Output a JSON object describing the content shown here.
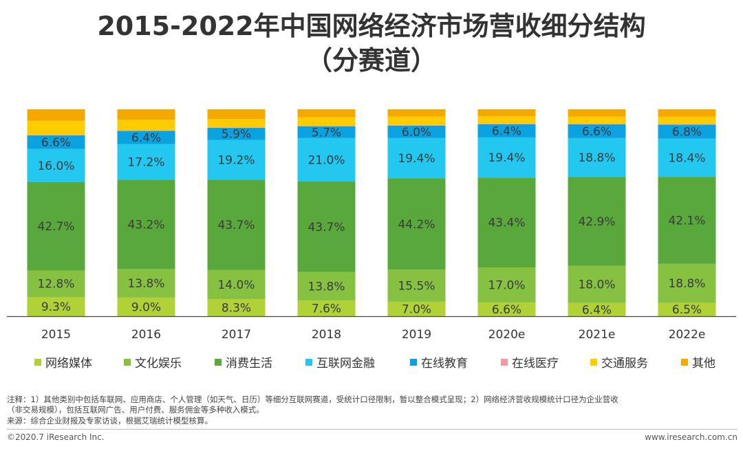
{
  "page": {
    "title_line1": "2015-2022年中国网络经济市场营收细分结构",
    "title_line2": "（分赛道）",
    "note_line1": "注释：1）其他类别中包括车联网、应用商店、个人管理（如天气、日历）等细分互联网赛道，受统计口径限制，暂以整合模式呈现；2）网络经济营收规模统计口径为企业营收",
    "note_line2": "（非交易规模），包括互联网广告、用户付费、服务佣金等多种收入模式。",
    "source": "来源：综合企业财报及专家访谈，根据艾瑞统计模型核算。",
    "copyright": "©2020.7 iResearch Inc.",
    "website": "www.iresearch.com.cn"
  },
  "chart_data": {
    "type": "bar",
    "stacked": true,
    "normalized": true,
    "categories": [
      "2015",
      "2016",
      "2017",
      "2018",
      "2019",
      "2020e",
      "2021e",
      "2022e"
    ],
    "series": [
      {
        "name": "网络媒体",
        "color": "#b0d236",
        "values": [
          9.3,
          9.0,
          8.3,
          7.6,
          7.0,
          6.6,
          6.4,
          6.5
        ],
        "labels": [
          "9.3%",
          "9.0%",
          "8.3%",
          "7.6%",
          "7.0%",
          "6.6%",
          "6.4%",
          "6.5%"
        ]
      },
      {
        "name": "文化娱乐",
        "color": "#86c142",
        "values": [
          12.8,
          13.8,
          14.0,
          13.8,
          15.5,
          17.0,
          18.0,
          18.8
        ],
        "labels": [
          "12.8%",
          "13.8%",
          "14.0%",
          "13.8%",
          "15.5%",
          "17.0%",
          "18.0%",
          "18.8%"
        ]
      },
      {
        "name": "消费生活",
        "color": "#59a83c",
        "values": [
          42.7,
          43.2,
          43.7,
          43.7,
          44.2,
          43.4,
          42.9,
          42.1
        ],
        "labels": [
          "42.7%",
          "43.2%",
          "43.7%",
          "43.7%",
          "44.2%",
          "43.4%",
          "42.9%",
          "42.1%"
        ]
      },
      {
        "name": "互联网金融",
        "color": "#22c8f0",
        "values": [
          16.0,
          17.2,
          19.2,
          21.0,
          19.4,
          19.4,
          18.8,
          18.4
        ],
        "labels": [
          "16.0%",
          "17.2%",
          "19.2%",
          "21.0%",
          "19.4%",
          "19.4%",
          "18.8%",
          "18.4%"
        ]
      },
      {
        "name": "在线教育",
        "color": "#0aa2e0",
        "values": [
          6.6,
          6.4,
          5.9,
          5.7,
          6.0,
          6.4,
          6.6,
          6.8
        ],
        "labels": [
          "6.6%",
          "6.4%",
          "5.9%",
          "5.7%",
          "6.0%",
          "6.4%",
          "6.6%",
          "6.8%"
        ]
      },
      {
        "name": "在线医疗",
        "color": "#f29aa0",
        "values": [
          0.2,
          0.2,
          0.2,
          0.2,
          0.3,
          0.3,
          0.3,
          0.3
        ],
        "labels": []
      },
      {
        "name": "交通服务",
        "color": "#ffcc00",
        "values": [
          6.8,
          5.1,
          4.0,
          4.2,
          4.1,
          3.5,
          3.5,
          3.5
        ],
        "labels": []
      },
      {
        "name": "其他",
        "color": "#f5a800",
        "values": [
          5.6,
          5.1,
          4.7,
          3.8,
          3.5,
          3.4,
          3.5,
          3.6
        ],
        "labels": []
      }
    ],
    "title": "2015-2022年中国网络经济市场营收细分结构（分赛道）",
    "xlabel": "",
    "ylabel": "",
    "ylim": [
      0,
      100
    ],
    "grid": false,
    "legend": "bottom"
  }
}
